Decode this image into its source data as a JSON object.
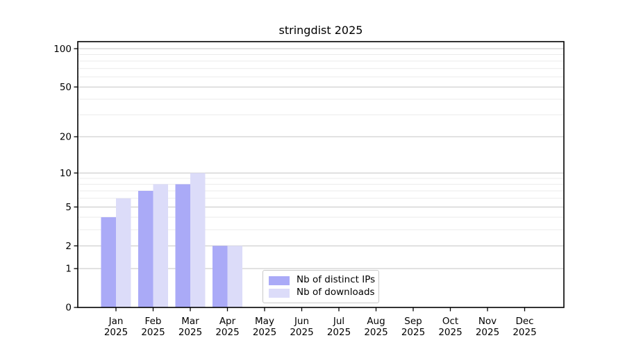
{
  "page": {
    "background": "#ffffff"
  },
  "chart_data": {
    "type": "bar",
    "title": "stringdist 2025",
    "categories": [
      "Jan",
      "Feb",
      "Mar",
      "Apr",
      "May",
      "Jun",
      "Jul",
      "Aug",
      "Sep",
      "Oct",
      "Nov",
      "Dec"
    ],
    "category_year": "2025",
    "series": [
      {
        "name": "Nb of distinct IPs",
        "color": "#aaaaf7",
        "values": [
          4,
          7,
          8,
          2,
          0,
          0,
          0,
          0,
          0,
          0,
          0,
          0
        ]
      },
      {
        "name": "Nb of downloads",
        "color": "#dcdcf9",
        "values": [
          6,
          8,
          10,
          2,
          0,
          0,
          0,
          0,
          0,
          0,
          0,
          0
        ]
      }
    ],
    "xlabel": "",
    "ylabel": "",
    "yscale": "log1p",
    "ylim": [
      0,
      113.5
    ],
    "y_ticks": [
      0,
      1,
      2,
      5,
      10,
      20,
      50,
      100
    ],
    "y_minor_ticks": [
      3,
      4,
      6,
      7,
      8,
      9,
      30,
      40,
      60,
      70,
      80,
      90
    ],
    "grid": {
      "horizontal": true,
      "major_color": "#c4c4c4",
      "minor_color": "#ebebeb"
    },
    "axis_color": "#000000",
    "legend_position": "lower center-left inside plot"
  }
}
